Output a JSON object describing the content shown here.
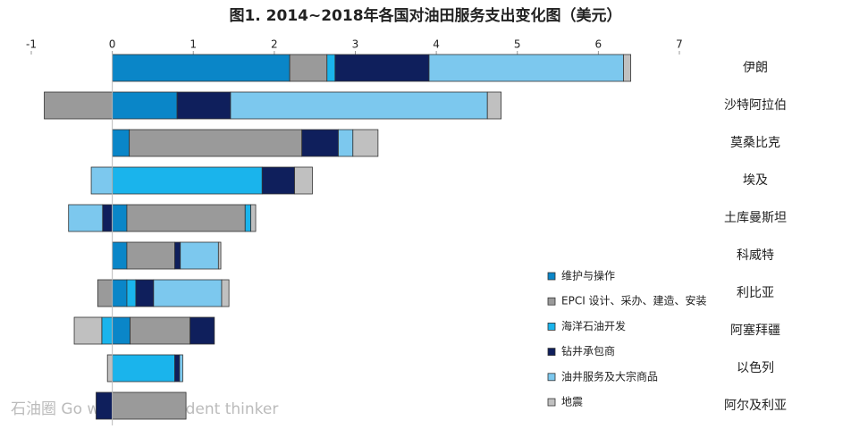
{
  "chart_data": {
    "type": "stacked-barh",
    "title": "图1. 2014~2018年各国对油田服务支出变化图（美元）",
    "categories": [
      "伊朗",
      "沙特阿拉伯",
      "莫桑比克",
      "埃及",
      "土库曼斯坦",
      "科威特",
      "利比亚",
      "阿塞拜疆",
      "以色列",
      "阿尔及利亚"
    ],
    "series": [
      {
        "name": "维护与操作",
        "color": "#0a86c8",
        "values": [
          2.19,
          0.8,
          0.21,
          0,
          0.18,
          0.18,
          0.18,
          0.22,
          0,
          0
        ]
      },
      {
        "name": "EPCI 设计、采办、建造、安装",
        "color": "#9a9a9a",
        "values": [
          0.46,
          -0.84,
          2.13,
          0,
          1.46,
          0.59,
          -0.18,
          0.74,
          0,
          0.91
        ]
      },
      {
        "name": "海洋石油开发",
        "color": "#1ab4ec",
        "values": [
          0.1,
          0,
          0,
          1.85,
          0.07,
          0,
          0.11,
          -0.13,
          0.77,
          0
        ]
      },
      {
        "name": "钻井承包商",
        "color": "#0f1f5c",
        "values": [
          1.16,
          0.66,
          0.45,
          0.4,
          -0.12,
          0.07,
          0.22,
          0.3,
          0.06,
          -0.2
        ]
      },
      {
        "name": "油井服务及大宗商品",
        "color": "#7cc8ee",
        "values": [
          2.4,
          3.17,
          0.18,
          -0.26,
          -0.42,
          0.47,
          0.84,
          0,
          0.04,
          0
        ]
      },
      {
        "name": "地震",
        "color": "#c0c0c0",
        "values": [
          0.09,
          0.17,
          0.31,
          0.22,
          0.06,
          0.03,
          0.09,
          -0.34,
          -0.06,
          0
        ]
      }
    ],
    "xlim": [
      -1,
      7
    ],
    "xticks": [
      -1,
      0,
      1,
      2,
      3,
      4,
      5,
      6,
      7
    ],
    "watermark": "石油圈 Go with independent thinker"
  }
}
